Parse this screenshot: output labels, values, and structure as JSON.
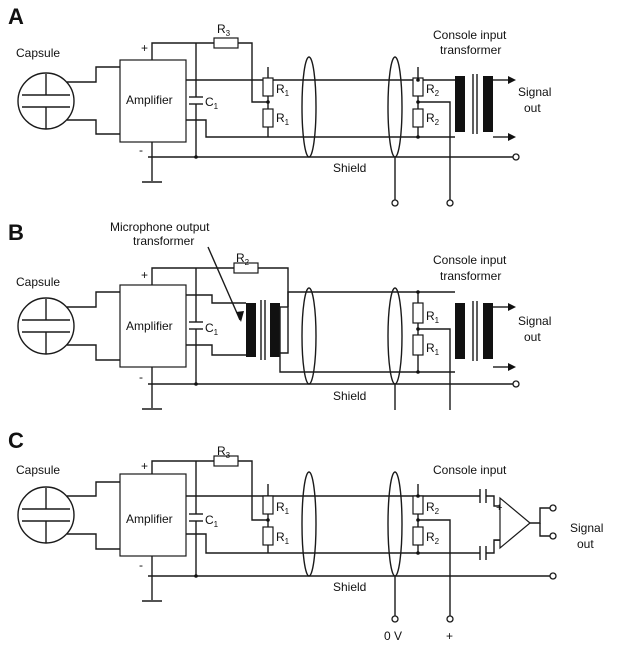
{
  "panels": {
    "a": {
      "letter": "A",
      "capsule": "Capsule",
      "amplifier": "Amplifier",
      "plus": "+",
      "minus": "-",
      "c1": "C",
      "c1_sub": "1",
      "r3": "R",
      "r3_sub": "3",
      "r1_top": "R",
      "r1_top_sub": "1",
      "r1_bot": "R",
      "r1_bot_sub": "1",
      "r2_top": "R",
      "r2_top_sub": "2",
      "r2_bot": "R",
      "r2_bot_sub": "2",
      "console_1": "Console input",
      "console_2": "transformer",
      "signal_1": "Signal",
      "signal_2": "out",
      "shield": "Shield"
    },
    "b": {
      "letter": "B",
      "capsule": "Capsule",
      "amplifier": "Amplifier",
      "plus": "+",
      "minus": "-",
      "c1": "C",
      "c1_sub": "1",
      "mic_1": "Microphone output",
      "mic_2": "transformer",
      "r2": "R",
      "r2_sub": "2",
      "r1_top": "R",
      "r1_top_sub": "1",
      "r1_bot": "R",
      "r1_bot_sub": "1",
      "console_1": "Console input",
      "console_2": "transformer",
      "signal_1": "Signal",
      "signal_2": "out",
      "shield": "Shield"
    },
    "c": {
      "letter": "C",
      "capsule": "Capsule",
      "amplifier": "Amplifier",
      "plus": "+",
      "minus": "-",
      "c1": "C",
      "c1_sub": "1",
      "r3": "R",
      "r3_sub": "3",
      "r1_top": "R",
      "r1_top_sub": "1",
      "r1_bot": "R",
      "r1_bot_sub": "1",
      "r2_top": "R",
      "r2_top_sub": "2",
      "r2_bot": "R",
      "r2_bot_sub": "2",
      "console": "Console input",
      "opamp_plus": "+",
      "opamp_minus": "−",
      "signal_1": "Signal",
      "signal_2": "out",
      "shield": "Shield",
      "zero_v": "0 V",
      "plus_supply": "+"
    }
  }
}
